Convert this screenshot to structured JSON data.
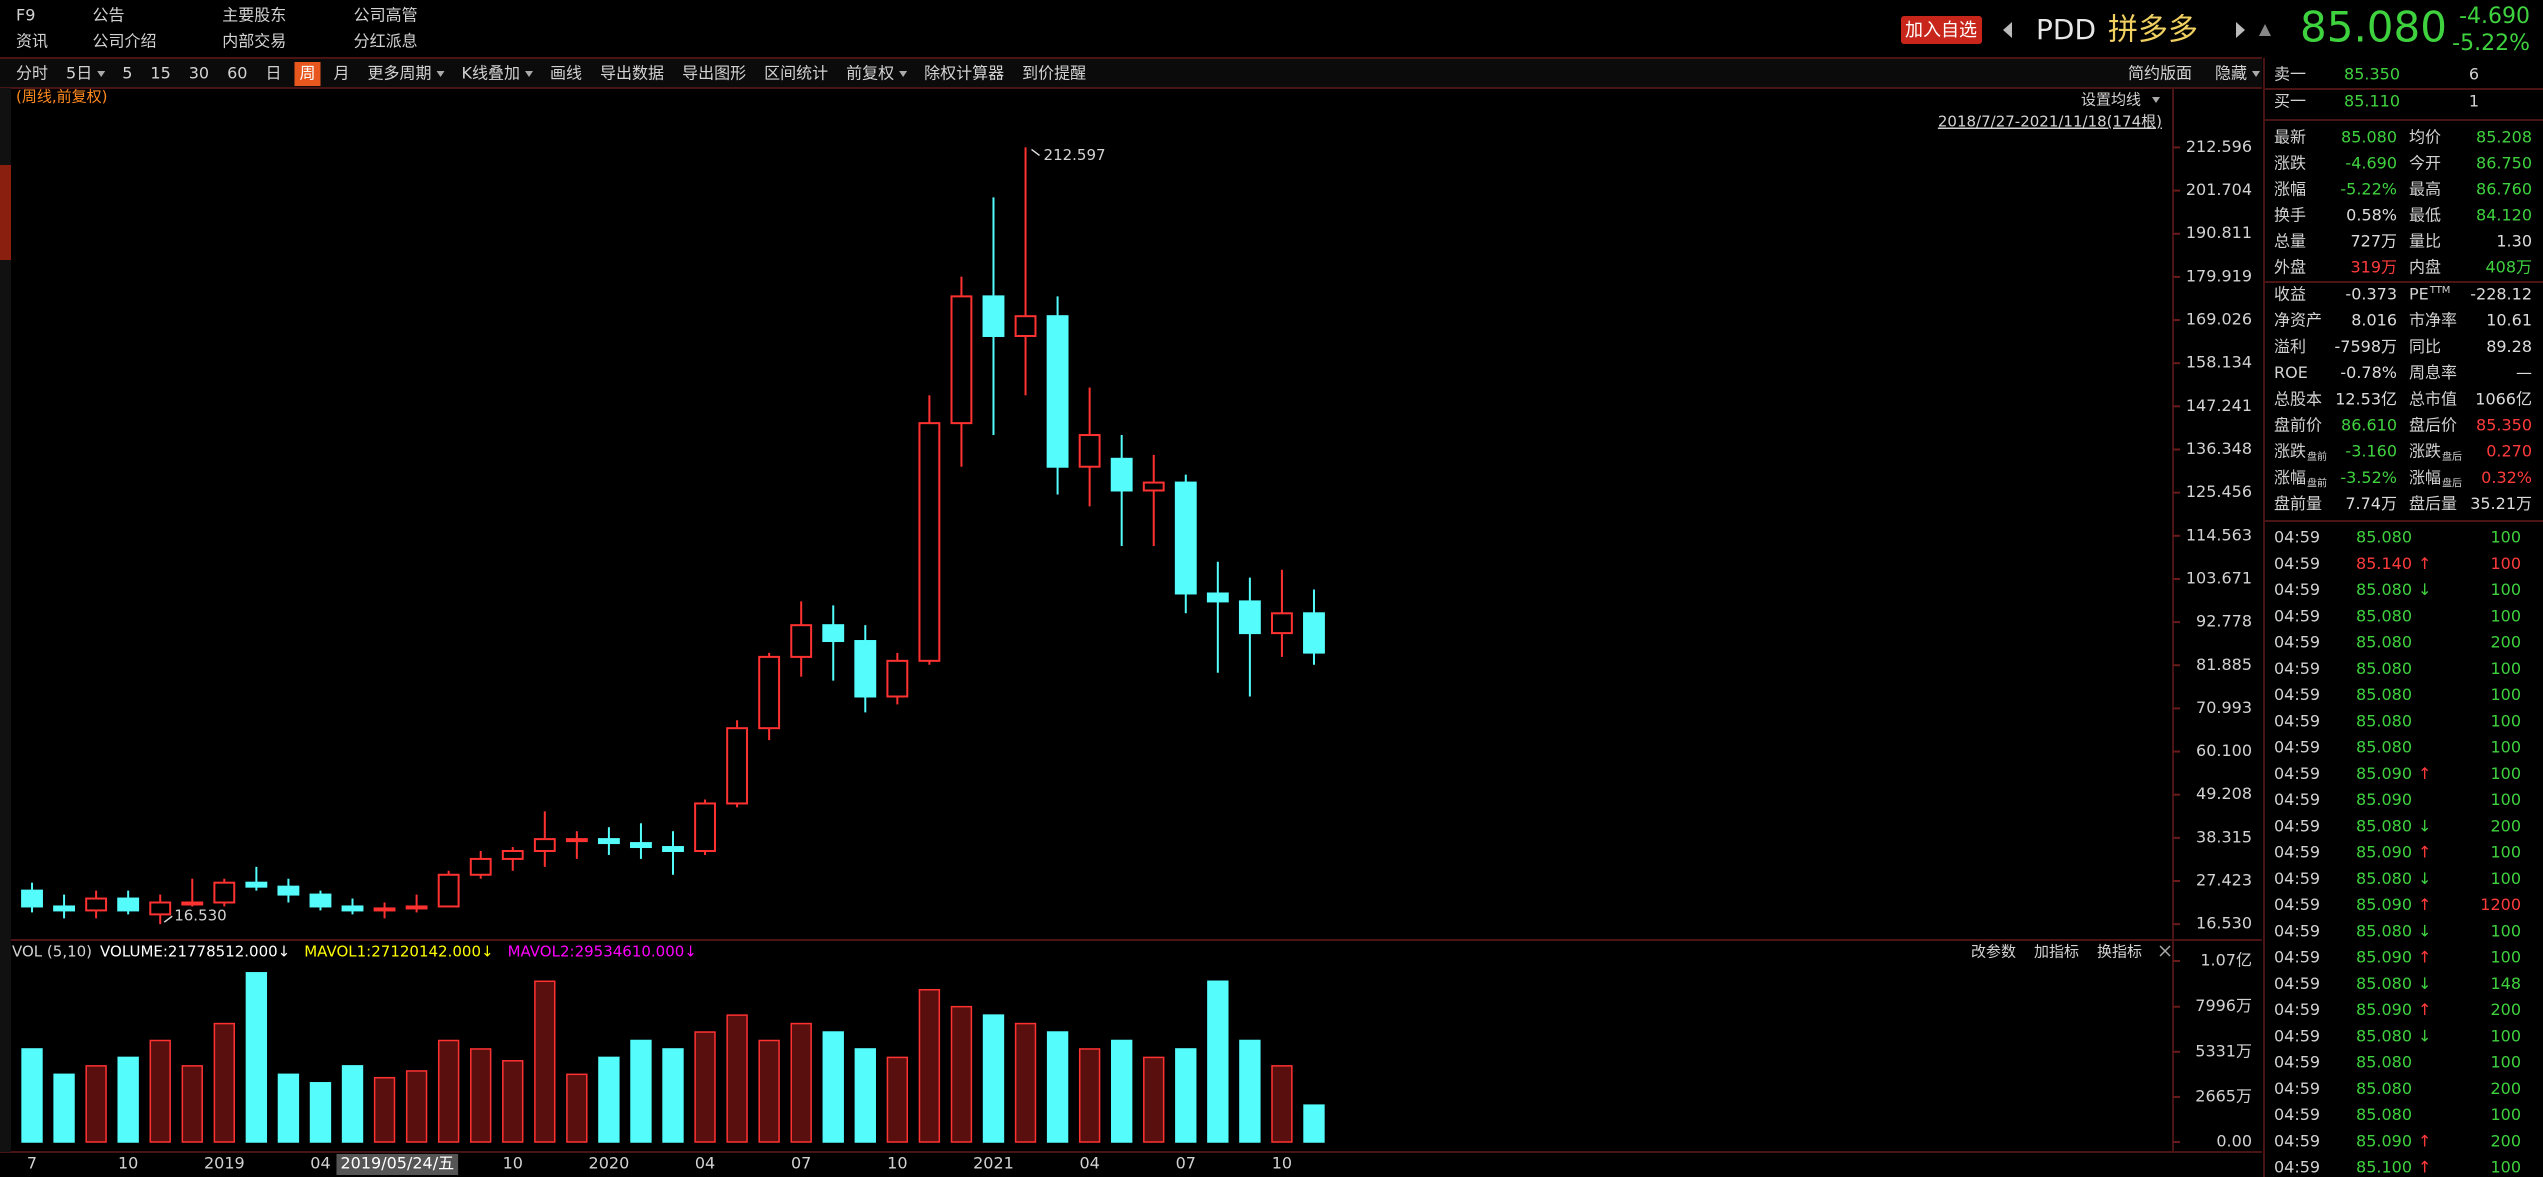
{
  "header": {
    "links": [
      [
        "F9",
        "公告",
        "主要股东",
        "公司高管"
      ],
      [
        "资讯",
        "公司介绍",
        "内部交易",
        "分红派息"
      ]
    ],
    "add_button": "加入自选",
    "ticker": "PDD",
    "name": "拼多多",
    "price": "85.080",
    "change": "-4.690",
    "change_pct": "-5.22%"
  },
  "toolbar": {
    "left": [
      {
        "label": "分时"
      },
      {
        "label": "5日",
        "dropdown": true
      },
      {
        "label": "5"
      },
      {
        "label": "15"
      },
      {
        "label": "30"
      },
      {
        "label": "60"
      },
      {
        "label": "日"
      },
      {
        "label": "周",
        "active": true
      },
      {
        "label": "月"
      },
      {
        "label": "更多周期",
        "dropdown": true
      },
      {
        "label": "K线叠加",
        "dropdown": true
      },
      {
        "label": "画线"
      },
      {
        "label": "导出数据"
      },
      {
        "label": "导出图形"
      },
      {
        "label": "区间统计"
      },
      {
        "label": "前复权",
        "dropdown": true
      },
      {
        "label": "除权计算器"
      },
      {
        "label": "到价提醒"
      }
    ],
    "right": [
      {
        "label": "简约版面"
      },
      {
        "label": "隐藏",
        "dropdown": true
      }
    ]
  },
  "chart_data": [
    {
      "type": "candlestick",
      "mode_label": "(周线,前复权)",
      "ma_setting": "设置均线",
      "range_label": "2018/7/27-2021/11/18(174根)",
      "max_label": "212.597",
      "min_label": "16.530",
      "up_color": "#ff3232",
      "down_color": "#54fcfc",
      "categories": [
        "7",
        null,
        null,
        "10",
        null,
        null,
        "2019",
        null,
        null,
        "04",
        "2019/05/24/五",
        null,
        null,
        null,
        null,
        "10",
        null,
        null,
        "2020",
        null,
        null,
        "04",
        null,
        null,
        "07",
        null,
        null,
        "10",
        null,
        null,
        "2021",
        null,
        null,
        "04",
        null,
        null,
        "07",
        null,
        null,
        "10",
        null
      ],
      "open": [
        25,
        21,
        20,
        23,
        19,
        22,
        22,
        27,
        26,
        24,
        21,
        20,
        20.5,
        21,
        29,
        33,
        35,
        38,
        38,
        37,
        36,
        35,
        47,
        66,
        84,
        92,
        88,
        74,
        83,
        143,
        175,
        165,
        170,
        132,
        134,
        126,
        128,
        100,
        98,
        90,
        95
      ],
      "high": [
        27,
        24,
        25,
        25,
        24,
        28,
        28,
        31,
        28,
        25,
        23,
        22,
        24,
        30,
        35,
        36,
        45,
        40,
        41,
        42,
        40,
        48,
        68,
        85,
        98,
        97,
        92,
        85,
        150,
        180,
        200,
        212.597,
        175,
        152,
        140,
        135,
        130,
        108,
        104,
        106,
        101
      ],
      "low": [
        19.5,
        18,
        18,
        19,
        16.53,
        21,
        21,
        25,
        22,
        20,
        19,
        18,
        19.5,
        21,
        28,
        30,
        31,
        33,
        34,
        33,
        29,
        34,
        46,
        63,
        79,
        78,
        70,
        72,
        82,
        132,
        140,
        150,
        125,
        122,
        112,
        112,
        95,
        80,
        74,
        84,
        82
      ],
      "close": [
        21,
        20,
        23,
        20,
        22,
        22,
        27,
        26,
        24,
        21,
        20,
        20.5,
        21,
        29,
        33,
        35,
        38,
        38,
        37,
        36,
        35,
        47,
        66,
        84,
        92,
        88,
        74,
        83,
        143,
        175,
        165,
        170,
        132,
        140,
        126,
        128,
        100,
        98,
        90,
        95,
        85.08
      ],
      "ylim": [
        13.29,
        227.6
      ],
      "yticks": [
        {
          "value": 16.53,
          "label": "16.530"
        },
        27.423,
        38.315,
        49.208,
        {
          "value": 60.1,
          "label": "60.100"
        },
        70.993,
        81.885,
        92.778,
        103.671,
        114.563,
        125.456,
        136.348,
        147.241,
        158.134,
        169.026,
        179.919,
        190.811,
        201.704,
        212.596
      ]
    },
    {
      "type": "bar",
      "title": "VOL (5,10)",
      "legend": [
        {
          "text": "VOLUME:21778512.000↓",
          "color": "#ffffff"
        },
        {
          "text": "MAVOL1:27120142.000↓",
          "color": "#ffff00"
        },
        {
          "text": "MAVOL2:29534610.000↓",
          "color": "#ff00ff"
        }
      ],
      "buttons": [
        "改参数",
        "加指标",
        "换指标"
      ],
      "values": [
        55000000,
        40000000,
        45000000,
        50000000,
        60000000,
        45000000,
        70000000,
        100000000,
        40000000,
        35000000,
        45000000,
        38000000,
        42000000,
        60000000,
        55000000,
        48000000,
        95000000,
        40000000,
        50000000,
        60000000,
        55000000,
        65000000,
        75000000,
        60000000,
        70000000,
        65000000,
        55000000,
        50000000,
        90000000,
        80000000,
        75000000,
        70000000,
        65000000,
        55000000,
        60000000,
        50000000,
        55000000,
        95000000,
        60000000,
        45000000,
        21778512
      ],
      "ylim": [
        0,
        118800000
      ],
      "yticks": [
        {
          "value": 0,
          "label": "0.00"
        },
        {
          "value": 26650000,
          "label": "2665万"
        },
        {
          "value": 53310000,
          "label": "5331万"
        },
        {
          "value": 79960000,
          "label": "7996万"
        },
        {
          "value": 107000000,
          "label": "1.07亿"
        }
      ]
    }
  ],
  "tones": {
    "up": "#ff3b3b",
    "down": "#3fd23f",
    "flat": "#dcdcdc"
  },
  "quote_panel": {
    "book": [
      {
        "label": "卖一",
        "price": "85.350",
        "size": "6",
        "tone": "down"
      },
      {
        "label": "买一",
        "price": "85.110",
        "size": "1",
        "tone": "down"
      }
    ],
    "stats": [
      [
        {
          "label": "最新",
          "value": "85.080",
          "tone": "down"
        },
        {
          "label": "均价",
          "value": "85.208",
          "tone": "down"
        }
      ],
      [
        {
          "label": "涨跌",
          "value": "-4.690",
          "tone": "down"
        },
        {
          "label": "今开",
          "value": "86.750",
          "tone": "down"
        }
      ],
      [
        {
          "label": "涨幅",
          "value": "-5.22%",
          "tone": "down"
        },
        {
          "label": "最高",
          "value": "86.760",
          "tone": "down"
        }
      ],
      [
        {
          "label": "换手",
          "value": "0.58%",
          "tone": "flat"
        },
        {
          "label": "最低",
          "value": "84.120",
          "tone": "down"
        }
      ],
      [
        {
          "label": "总量",
          "value": "727万",
          "tone": "flat"
        },
        {
          "label": "量比",
          "value": "1.30",
          "tone": "flat"
        }
      ],
      [
        {
          "label": "外盘",
          "value": "319万",
          "tone": "up"
        },
        {
          "label": "内盘",
          "value": "408万",
          "tone": "down"
        }
      ],
      [
        {
          "label": "收益",
          "value": "-0.373",
          "tone": "flat"
        },
        {
          "label": "PE",
          "sup": "TTM",
          "value": "-228.12",
          "tone": "flat"
        }
      ],
      [
        {
          "label": "净资产",
          "value": "8.016",
          "tone": "flat"
        },
        {
          "label": "市净率",
          "value": "10.61",
          "tone": "flat"
        }
      ],
      [
        {
          "label": "溢利",
          "value": "-7598万",
          "tone": "flat"
        },
        {
          "label": "同比",
          "value": "89.28",
          "tone": "flat"
        }
      ],
      [
        {
          "label": "ROE",
          "value": "-0.78%",
          "tone": "flat"
        },
        {
          "label": "周息率",
          "value": "—",
          "tone": "flat"
        }
      ],
      [
        {
          "label": "总股本",
          "value": "12.53亿",
          "tone": "flat"
        },
        {
          "label": "总市值",
          "value": "1066亿",
          "tone": "flat"
        }
      ],
      [
        {
          "label": "盘前价",
          "value": "86.610",
          "tone": "down"
        },
        {
          "label": "盘后价",
          "value": "85.350",
          "tone": "up"
        }
      ],
      [
        {
          "label": "涨跌",
          "sub": "盘前",
          "value": "-3.160",
          "tone": "down"
        },
        {
          "label": "涨跌",
          "sub": "盘后",
          "value": "0.270",
          "tone": "up"
        }
      ],
      [
        {
          "label": "涨幅",
          "sub": "盘前",
          "value": "-3.52%",
          "tone": "down"
        },
        {
          "label": "涨幅",
          "sub": "盘后",
          "value": "0.32%",
          "tone": "up"
        }
      ],
      [
        {
          "label": "盘前量",
          "value": "7.74万",
          "tone": "flat"
        },
        {
          "label": "盘后量",
          "value": "35.21万",
          "tone": "flat"
        }
      ]
    ],
    "trades": [
      {
        "time": "04:59",
        "price": "85.080",
        "tone": "down",
        "vol": "100",
        "vol_tone": "down"
      },
      {
        "time": "04:59",
        "price": "85.140",
        "tone": "up",
        "dir": "↑",
        "vol": "100",
        "vol_tone": "up"
      },
      {
        "time": "04:59",
        "price": "85.080",
        "tone": "down",
        "dir": "↓",
        "vol": "100",
        "vol_tone": "down"
      },
      {
        "time": "04:59",
        "price": "85.080",
        "tone": "down",
        "vol": "100",
        "vol_tone": "down"
      },
      {
        "time": "04:59",
        "price": "85.080",
        "tone": "down",
        "vol": "200",
        "vol_tone": "down"
      },
      {
        "time": "04:59",
        "price": "85.080",
        "tone": "down",
        "vol": "100",
        "vol_tone": "down"
      },
      {
        "time": "04:59",
        "price": "85.080",
        "tone": "down",
        "vol": "100",
        "vol_tone": "down"
      },
      {
        "time": "04:59",
        "price": "85.080",
        "tone": "down",
        "vol": "100",
        "vol_tone": "down"
      },
      {
        "time": "04:59",
        "price": "85.080",
        "tone": "down",
        "vol": "100",
        "vol_tone": "down"
      },
      {
        "time": "04:59",
        "price": "85.090",
        "tone": "down",
        "dir": "↑",
        "vol": "100",
        "vol_tone": "down"
      },
      {
        "time": "04:59",
        "price": "85.090",
        "tone": "down",
        "vol": "100",
        "vol_tone": "down"
      },
      {
        "time": "04:59",
        "price": "85.080",
        "tone": "down",
        "dir": "↓",
        "vol": "200",
        "vol_tone": "down"
      },
      {
        "time": "04:59",
        "price": "85.090",
        "tone": "down",
        "dir": "↑",
        "vol": "100",
        "vol_tone": "down"
      },
      {
        "time": "04:59",
        "price": "85.080",
        "tone": "down",
        "dir": "↓",
        "vol": "100",
        "vol_tone": "down"
      },
      {
        "time": "04:59",
        "price": "85.090",
        "tone": "down",
        "dir": "↑",
        "vol": "1200",
        "vol_tone": "up"
      },
      {
        "time": "04:59",
        "price": "85.080",
        "tone": "down",
        "dir": "↓",
        "vol": "100",
        "vol_tone": "down"
      },
      {
        "time": "04:59",
        "price": "85.090",
        "tone": "down",
        "dir": "↑",
        "vol": "100",
        "vol_tone": "down"
      },
      {
        "time": "04:59",
        "price": "85.080",
        "tone": "down",
        "dir": "↓",
        "vol": "148",
        "vol_tone": "down"
      },
      {
        "time": "04:59",
        "price": "85.090",
        "tone": "down",
        "dir": "↑",
        "vol": "200",
        "vol_tone": "down"
      },
      {
        "time": "04:59",
        "price": "85.080",
        "tone": "down",
        "dir": "↓",
        "vol": "100",
        "vol_tone": "down"
      },
      {
        "time": "04:59",
        "price": "85.080",
        "tone": "down",
        "vol": "100",
        "vol_tone": "down"
      },
      {
        "time": "04:59",
        "price": "85.080",
        "tone": "down",
        "vol": "200",
        "vol_tone": "down"
      },
      {
        "time": "04:59",
        "price": "85.080",
        "tone": "down",
        "vol": "100",
        "vol_tone": "down"
      },
      {
        "time": "04:59",
        "price": "85.090",
        "tone": "down",
        "dir": "↑",
        "vol": "200",
        "vol_tone": "down"
      },
      {
        "time": "04:59",
        "price": "85.100",
        "tone": "down",
        "dir": "↑",
        "vol": "100",
        "vol_tone": "down"
      }
    ]
  }
}
